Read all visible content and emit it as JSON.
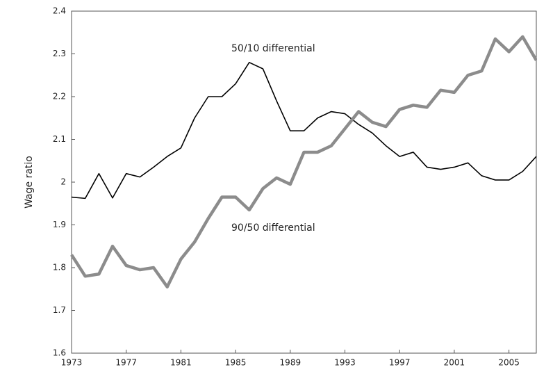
{
  "chart_data": {
    "type": "line",
    "y_label": "Wage ratio",
    "annotations": [
      "50/10 differential",
      "90/50 differential"
    ],
    "x": [
      1973,
      1974,
      1975,
      1976,
      1977,
      1978,
      1979,
      1980,
      1981,
      1982,
      1983,
      1984,
      1985,
      1986,
      1987,
      1988,
      1989,
      1990,
      1991,
      1992,
      1993,
      1994,
      1995,
      1996,
      1997,
      1998,
      1999,
      2000,
      2001,
      2002,
      2003,
      2004,
      2005,
      2006,
      2007
    ],
    "series": [
      {
        "name": "50/10 differential",
        "color": "#000000",
        "values": [
          1.965,
          1.962,
          2.02,
          1.963,
          2.02,
          2.012,
          2.035,
          2.06,
          2.08,
          2.15,
          2.2,
          2.2,
          2.23,
          2.28,
          2.265,
          2.19,
          2.12,
          2.12,
          2.15,
          2.165,
          2.16,
          2.135,
          2.115,
          2.085,
          2.06,
          2.07,
          2.035,
          2.03,
          2.035,
          2.045,
          2.015,
          2.005,
          2.005,
          2.025,
          2.06
        ]
      },
      {
        "name": "90/50 differential",
        "color": "#8c8c8c",
        "values": [
          1.83,
          1.78,
          1.785,
          1.85,
          1.805,
          1.795,
          1.8,
          1.755,
          1.82,
          1.86,
          1.915,
          1.965,
          1.965,
          1.935,
          1.985,
          2.01,
          1.995,
          2.07,
          2.07,
          2.085,
          2.125,
          2.165,
          2.14,
          2.13,
          2.17,
          2.18,
          2.175,
          2.215,
          2.21,
          2.25,
          2.26,
          2.335,
          2.305,
          2.34,
          2.285
        ]
      }
    ],
    "xlim": [
      1973,
      2007
    ],
    "xticks": [
      1973,
      1977,
      1981,
      1985,
      1989,
      1993,
      1997,
      2001,
      2005
    ],
    "ylim": [
      1.6,
      2.4
    ],
    "yticks": [
      1.6,
      1.7,
      1.8,
      1.9,
      2.0,
      2.1,
      2.2,
      2.3,
      2.4
    ]
  }
}
